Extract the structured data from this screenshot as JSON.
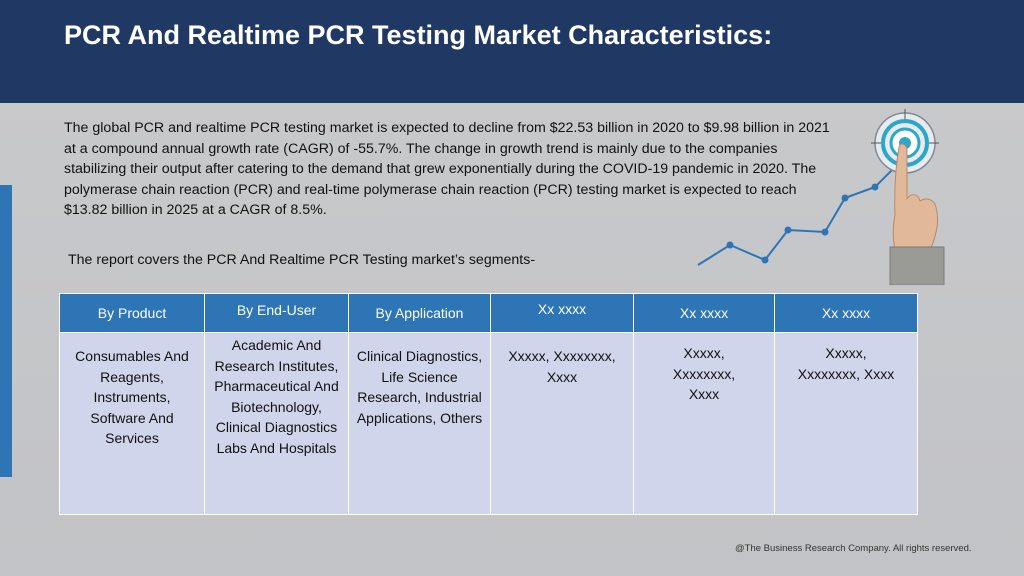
{
  "slide": {
    "title": "PCR And Realtime PCR Testing Market Characteristics:",
    "intro": "The global PCR and realtime PCR testing market is expected to decline from $22.53 billion in 2020 to $9.98 billion in 2021 at a compound annual growth rate (CAGR) of -55.7%. The change in growth trend is mainly due to the companies stabilizing their output after catering to the demand that grew exponentially during the COVID-19 pandemic in 2020. The polymerase chain reaction (PCR) and real-time polymerase chain reaction (PCR) testing market is expected to reach $13.82 billion in 2025 at a CAGR of 8.5%.",
    "segments_note": "The report covers the PCR And Realtime PCR Testing market’s segments-",
    "footer": "@The Business Research Company. All rights reserved."
  },
  "table": {
    "headers": [
      "By Product",
      "By End-User",
      "By Application",
      "Xx xxxx",
      "Xx xxxx",
      "Xx xxxx"
    ],
    "cells": [
      "Consumables And Reagents, Instruments, Software And Services",
      "Academic And Research Institutes, Pharmaceutical And Biotechnology, Clinical Diagnostics Labs And Hospitals",
      "Clinical Diagnostics, Life Science Research, Industrial Applications, Others",
      "Xxxxx, Xxxxxxxx, Xxxx",
      "Xxxxx, Xxxxxxxx, Xxxx",
      "Xxxxx, Xxxxxxxx, Xxxx"
    ]
  },
  "colors": {
    "header_band": "#1f3864",
    "accent": "#2e75b6",
    "table_header": "#2e75b6",
    "table_cell": "#cfd5ea"
  },
  "icons": [
    "target-icon",
    "pointing-hand-icon",
    "growth-line-icon"
  ]
}
